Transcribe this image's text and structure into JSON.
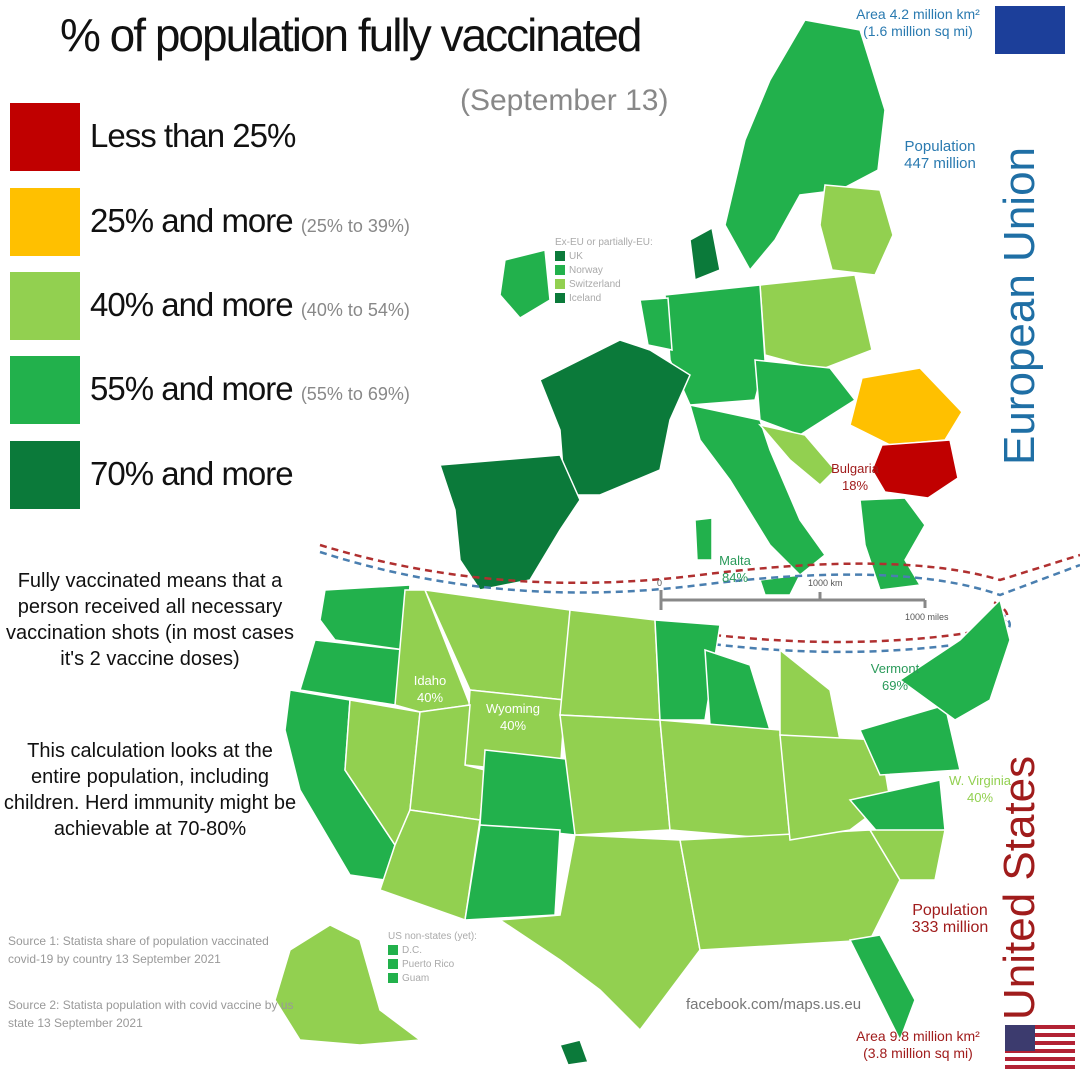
{
  "header": {
    "title": "% of population fully vaccinated",
    "subtitle": "(September 13)"
  },
  "legend": [
    {
      "label": "Less than 25%",
      "color": "#c00000"
    },
    {
      "label": "25% and more",
      "range": "(25% to 39%)",
      "color": "#ffc000"
    },
    {
      "label": "40% and more",
      "range": "(40% to 54%)",
      "color": "#92d050"
    },
    {
      "label": "55% and more",
      "range": "(55% to 69%)",
      "color": "#22b14c"
    },
    {
      "label": "70% and more",
      "color": "#0b7a3a"
    }
  ],
  "notes": [
    "Fully vaccinated means that a person received all necessary vaccination shots (in most cases it's 2 vaccine doses)",
    "This calculation looks at the entire population, including children. Herd immunity might be achievable at 70-80%"
  ],
  "sources": [
    "Source 1: Statista share of population vaccinated covid-19 by country 13 September 2021",
    "Source 2: Statista population with covid vaccine by us state 13 September 2021"
  ],
  "eu": {
    "name": "European Union",
    "area": "Area 4.2 million km²",
    "area_mi": "(1.6 million sq mi)",
    "population_label": "Population",
    "population": "447 million",
    "ex_eu_title": "Ex-EU or partially-EU:",
    "ex_eu": [
      "UK",
      "Norway",
      "Switzerland",
      "Iceland"
    ]
  },
  "us": {
    "name": "United States",
    "area": "Area 9.8 million km²",
    "area_mi": "(3.8 million sq mi)",
    "population_label": "Population",
    "population": "333 million",
    "non_states_title": "US non-states (yet):",
    "non_states": [
      "D.C.",
      "Puerto Rico",
      "Guam"
    ]
  },
  "labels": [
    {
      "name": "Bulgaria",
      "value": "18%"
    },
    {
      "name": "Malta",
      "value": "84%"
    },
    {
      "name": "Idaho",
      "value": "40%"
    },
    {
      "name": "Wyoming",
      "value": "40%"
    },
    {
      "name": "Vermont",
      "value": "69%"
    },
    {
      "name": "W. Virginia",
      "value": "40%"
    }
  ],
  "scale": {
    "zero": "0",
    "km": "1000 km",
    "miles": "1000 miles"
  },
  "credit": "facebook.com/maps.us.eu"
}
